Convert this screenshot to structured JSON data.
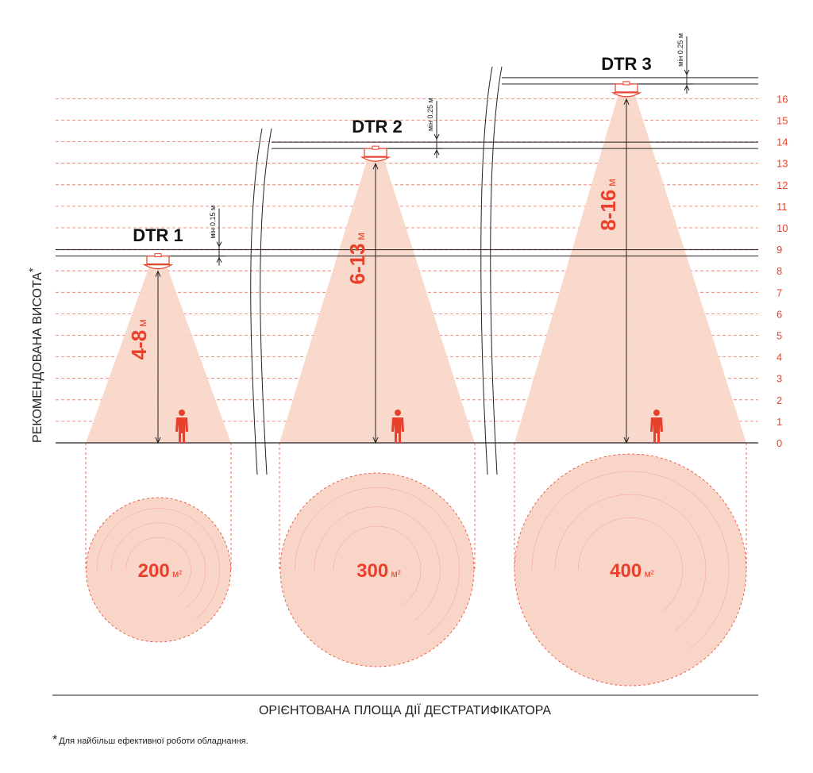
{
  "y_axis_title": "РЕКОМЕНДОВАНА ВИСОТА",
  "y_axis_title_mark": "*",
  "x_axis_title": "ОРІЄНТОВАНА ПЛОЩА ДІЇ ДЕСТРАТИФІКАТОРА",
  "footnote": {
    "mark": "*",
    "text": "Для найбільш ефективної роботи обладнання."
  },
  "scale_ticks": [
    "0",
    "1",
    "2",
    "3",
    "4",
    "5",
    "6",
    "7",
    "8",
    "9",
    "10",
    "11",
    "12",
    "13",
    "14",
    "15",
    "16"
  ],
  "colors": {
    "accent": "#e8402a",
    "cone": "#f9d5c8",
    "line": "#222222"
  },
  "units": [
    {
      "title": "DTR 1",
      "clearance": "мін 0.15 м",
      "range": "4-8",
      "range_unit": "м",
      "mount_height": 8.5,
      "min_height": 4,
      "max_height": 8,
      "area": "200",
      "area_unit": "м²"
    },
    {
      "title": "DTR 2",
      "clearance": "мін 0.25 м",
      "range": "6-13",
      "range_unit": "м",
      "mount_height": 13.5,
      "min_height": 6,
      "max_height": 13,
      "area": "300",
      "area_unit": "м²"
    },
    {
      "title": "DTR 3",
      "clearance": "мін 0.25 м",
      "range": "8-16",
      "range_unit": "м",
      "mount_height": 16.5,
      "min_height": 8,
      "max_height": 16,
      "area": "400",
      "area_unit": "м²"
    }
  ]
}
